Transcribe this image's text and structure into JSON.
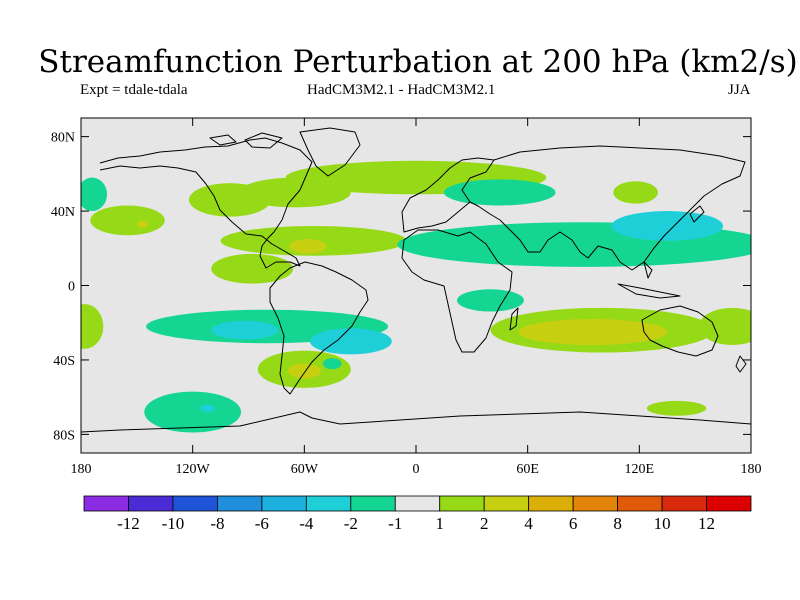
{
  "title": "Streamfunction Perturbation at 200 hPa (km2/s)",
  "experiment": "Expt = tdale-tdala",
  "models": "HadCM3M2.1 - HadCM3M2.1",
  "season": "JJA",
  "map": {
    "projection": "cylindrical-equidistant",
    "lon_range": [
      -180,
      180
    ],
    "lat_range": [
      -90,
      90
    ],
    "lat_ticks": [
      {
        "value": 80,
        "label": "80N"
      },
      {
        "value": 40,
        "label": "40N"
      },
      {
        "value": 0,
        "label": "0"
      },
      {
        "value": -40,
        "label": "40S"
      },
      {
        "value": -80,
        "label": "80S"
      }
    ],
    "lon_ticks": [
      {
        "value": -180,
        "label": "180"
      },
      {
        "value": -120,
        "label": "120W"
      },
      {
        "value": -60,
        "label": "60W"
      },
      {
        "value": 0,
        "label": "0"
      },
      {
        "value": 60,
        "label": "60E"
      },
      {
        "value": 120,
        "label": "120E"
      },
      {
        "value": 180,
        "label": "180"
      }
    ],
    "background_color": "#e6e6e6",
    "anomalies": [
      {
        "lon": 0,
        "lat": 58,
        "rlon": 70,
        "rlat": 9,
        "level": 1
      },
      {
        "lon": -65,
        "lat": 50,
        "rlon": 30,
        "rlat": 8,
        "level": 1
      },
      {
        "lon": -100,
        "lat": 46,
        "rlon": 22,
        "rlat": 9,
        "level": 1
      },
      {
        "lon": 45,
        "lat": 50,
        "rlon": 30,
        "rlat": 7,
        "level": -1
      },
      {
        "lon": 118,
        "lat": 50,
        "rlon": 12,
        "rlat": 6,
        "level": 1
      },
      {
        "lon": -155,
        "lat": 35,
        "rlon": 20,
        "rlat": 8,
        "level": 1
      },
      {
        "lon": -147,
        "lat": 33,
        "rlon": 3,
        "rlat": 2,
        "level": 2
      },
      {
        "lon": -174,
        "lat": 49,
        "rlon": 8,
        "rlat": 9,
        "level": -1
      },
      {
        "lon": -55,
        "lat": 24,
        "rlon": 50,
        "rlat": 8,
        "level": 1
      },
      {
        "lon": -58,
        "lat": 21,
        "rlon": 10,
        "rlat": 4,
        "level": 2
      },
      {
        "lon": -88,
        "lat": 9,
        "rlon": 22,
        "rlat": 8,
        "level": 1
      },
      {
        "lon": 90,
        "lat": 22,
        "rlon": 100,
        "rlat": 12,
        "level": -1
      },
      {
        "lon": 135,
        "lat": 32,
        "rlon": 30,
        "rlat": 8,
        "level": -2
      },
      {
        "lon": 40,
        "lat": -8,
        "rlon": 18,
        "rlat": 6,
        "level": -1
      },
      {
        "lon": 100,
        "lat": -24,
        "rlon": 60,
        "rlat": 12,
        "level": 1
      },
      {
        "lon": 95,
        "lat": -25,
        "rlon": 40,
        "rlat": 7,
        "level": 2
      },
      {
        "lon": 170,
        "lat": -22,
        "rlon": 18,
        "rlat": 10,
        "level": 1
      },
      {
        "lon": -178,
        "lat": -22,
        "rlon": 10,
        "rlat": 12,
        "level": 1
      },
      {
        "lon": -80,
        "lat": -22,
        "rlon": 65,
        "rlat": 9,
        "level": -1
      },
      {
        "lon": -92,
        "lat": -24,
        "rlon": 18,
        "rlat": 5,
        "level": -2
      },
      {
        "lon": -35,
        "lat": -30,
        "rlon": 22,
        "rlat": 7,
        "level": -2
      },
      {
        "lon": -60,
        "lat": -45,
        "rlon": 25,
        "rlat": 10,
        "level": 1
      },
      {
        "lon": -60,
        "lat": -46,
        "rlon": 9,
        "rlat": 4,
        "level": 2
      },
      {
        "lon": -45,
        "lat": -42,
        "rlon": 5,
        "rlat": 3,
        "level": -1
      },
      {
        "lon": -120,
        "lat": -68,
        "rlon": 26,
        "rlat": 11,
        "level": -1
      },
      {
        "lon": -112,
        "lat": -66,
        "rlon": 4,
        "rlat": 2,
        "level": -2
      },
      {
        "lon": 140,
        "lat": -66,
        "rlon": 16,
        "rlat": 4,
        "level": 1
      }
    ]
  },
  "colorbar": {
    "labels": [
      "-12",
      "-10",
      "-8",
      "-6",
      "-4",
      "-2",
      "-1",
      "1",
      "2",
      "4",
      "6",
      "8",
      "10",
      "12"
    ],
    "colors": [
      "#8b2be2",
      "#4b2bd6",
      "#1f54d8",
      "#1f8fdc",
      "#1cb0df",
      "#1ecfd8",
      "#14d692",
      "#e6e6e6",
      "#96d916",
      "#c6d011",
      "#dcae08",
      "#e2840a",
      "#e05a0a",
      "#da2a0c",
      "#dd0000"
    ]
  }
}
